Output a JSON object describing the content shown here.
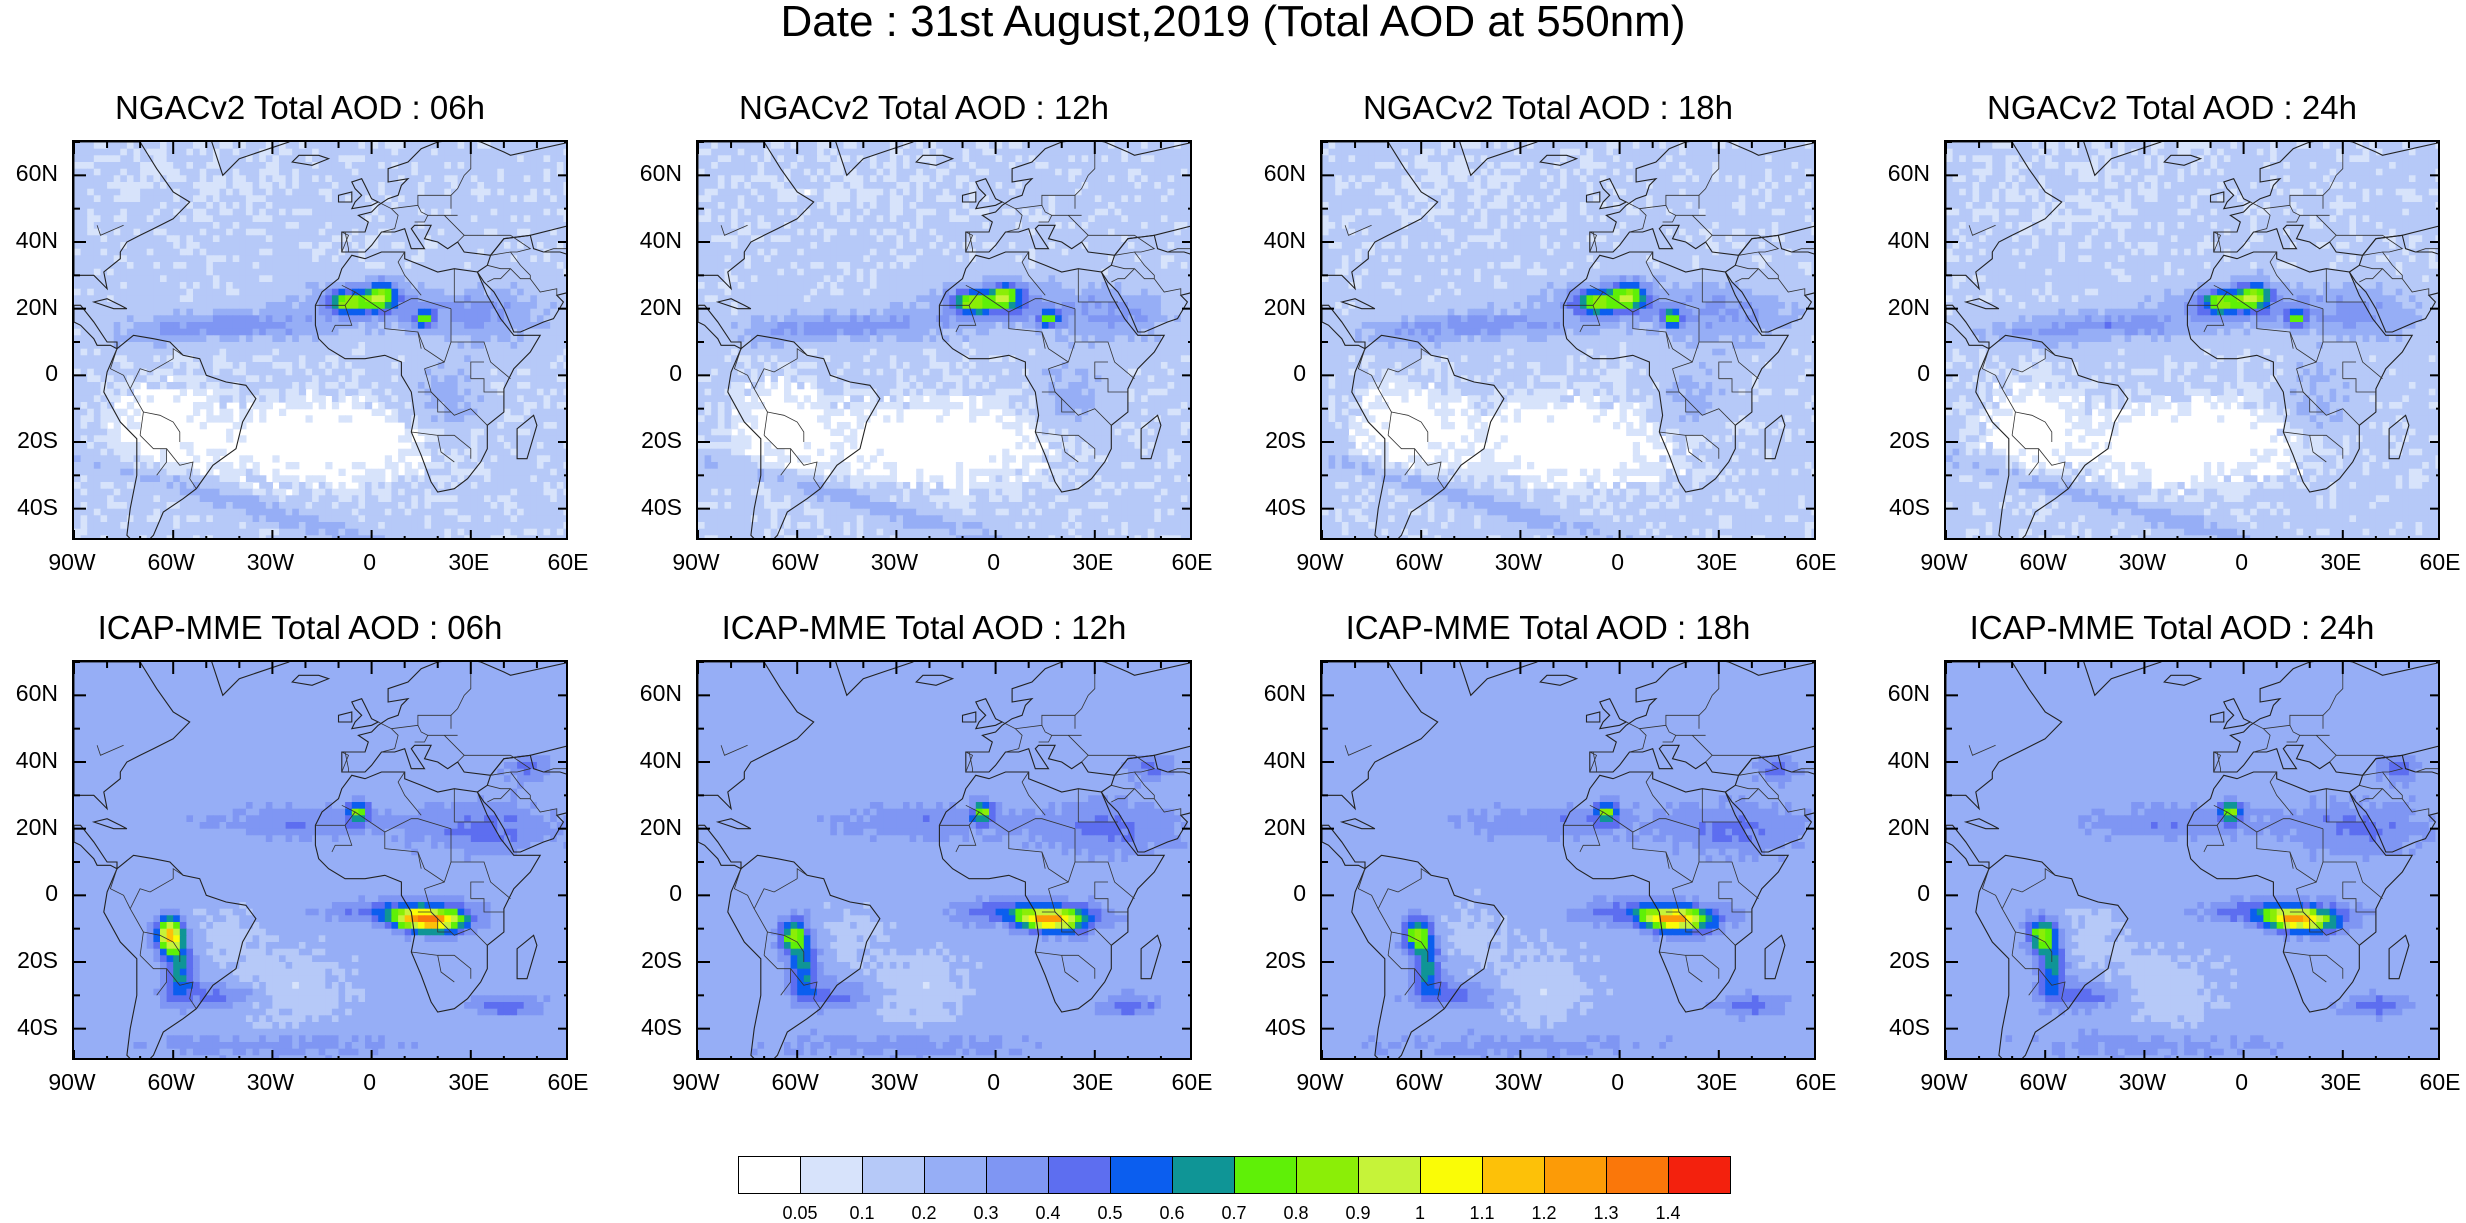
{
  "title": "Date : 31st August,2019 (Total AOD at 550nm)",
  "panels": [
    {
      "title": "NGACv2 Total AOD : 06h",
      "model": "ngac",
      "hour": 6
    },
    {
      "title": "NGACv2 Total AOD : 12h",
      "model": "ngac",
      "hour": 12
    },
    {
      "title": "NGACv2 Total AOD : 18h",
      "model": "ngac",
      "hour": 18
    },
    {
      "title": "NGACv2 Total AOD : 24h",
      "model": "ngac",
      "hour": 24
    },
    {
      "title": "ICAP-MME Total AOD : 06h",
      "model": "icap",
      "hour": 6
    },
    {
      "title": "ICAP-MME Total AOD : 12h",
      "model": "icap",
      "hour": 12
    },
    {
      "title": "ICAP-MME Total AOD : 18h",
      "model": "icap",
      "hour": 18
    },
    {
      "title": "ICAP-MME Total AOD : 24h",
      "model": "icap",
      "hour": 24
    }
  ],
  "axes": {
    "lat_labels": [
      "60N",
      "40N",
      "20N",
      "0",
      "20S",
      "40S"
    ],
    "lat_values": [
      60,
      40,
      20,
      0,
      -20,
      -40
    ],
    "lon_labels": [
      "90W",
      "60W",
      "30W",
      "0",
      "30E",
      "60E"
    ],
    "lon_values": [
      -90,
      -60,
      -30,
      0,
      30,
      60
    ],
    "lat_range": [
      -50,
      70
    ],
    "lon_range": [
      -90,
      60
    ]
  },
  "colorbar": {
    "labels": [
      "0.05",
      "0.1",
      "0.2",
      "0.3",
      "0.4",
      "0.5",
      "0.6",
      "0.7",
      "0.8",
      "0.9",
      "1",
      "1.1",
      "1.2",
      "1.3",
      "1.4"
    ],
    "colors": [
      "#ffffff",
      "#d7e3fb",
      "#b6c9f8",
      "#96aef6",
      "#7f96f3",
      "#5d6ef0",
      "#0b5eef",
      "#0f9596",
      "#5ff007",
      "#8bee07",
      "#c6f339",
      "#fafc06",
      "#fdc108",
      "#fc9b07",
      "#fa770a",
      "#f3210d"
    ]
  }
}
